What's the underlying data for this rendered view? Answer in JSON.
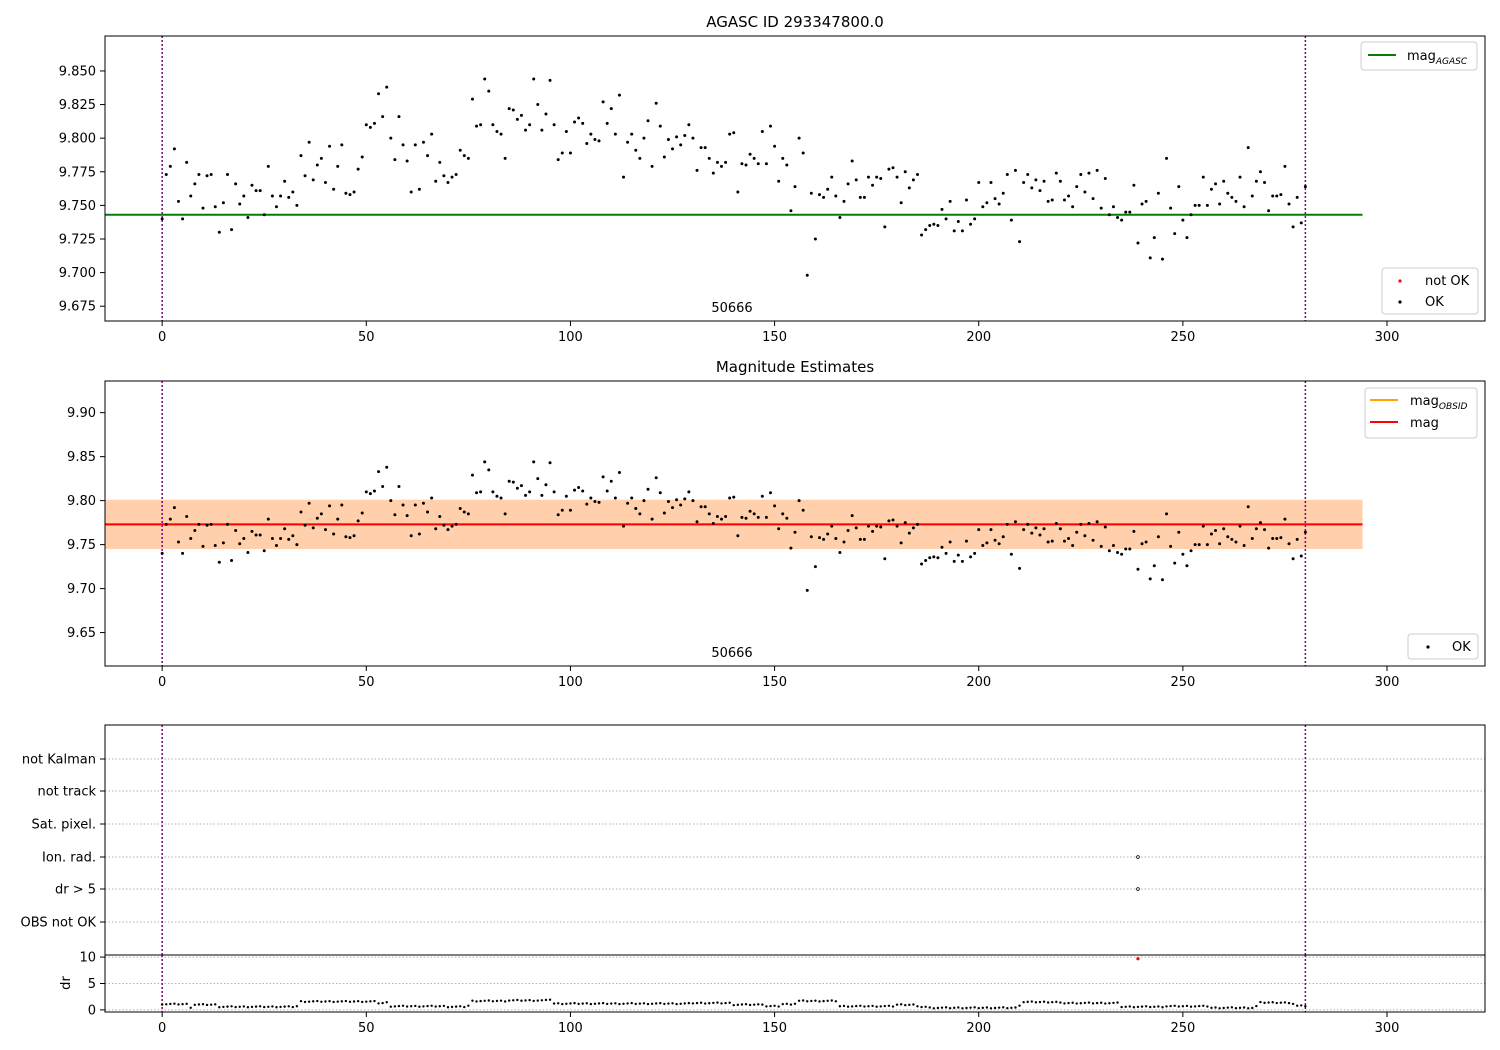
{
  "chart_data": [
    {
      "type": "scatter",
      "title": "AGASC ID 293347800.0",
      "xlabel": "",
      "ylabel": "",
      "xlim": [
        -14,
        324
      ],
      "ylim": [
        9.664,
        9.876
      ],
      "xticks": [
        0,
        50,
        100,
        150,
        200,
        250,
        300
      ],
      "yticks": [
        9.675,
        9.7,
        9.725,
        9.75,
        9.775,
        9.8,
        9.825,
        9.85
      ],
      "obsid_label": "50666",
      "vlines": [
        0,
        280
      ],
      "hlines": [
        {
          "name": "mag_AGASC",
          "y": 9.743,
          "x_range": [
            -14,
            294
          ],
          "color": "#008000"
        }
      ],
      "legends": [
        {
          "position": "upper-right",
          "entries": [
            {
              "label": "mag",
              "sub": "AGASC",
              "kind": "line",
              "color": "#008000"
            }
          ]
        },
        {
          "position": "lower-right",
          "entries": [
            {
              "label": "not OK",
              "kind": "dot",
              "color": "#ff0000"
            },
            {
              "label": "OK",
              "kind": "dot",
              "color": "#000000"
            }
          ]
        }
      ],
      "series": [
        {
          "role": "OK",
          "color": "#000000",
          "points": "shared_mags"
        }
      ],
      "grid": false
    },
    {
      "type": "scatter",
      "title": "Magnitude Estimates",
      "xlabel": "",
      "ylabel": "",
      "xlim": [
        -14,
        324
      ],
      "ylim": [
        9.612,
        9.936
      ],
      "xticks": [
        0,
        50,
        100,
        150,
        200,
        250,
        300
      ],
      "yticks": [
        9.65,
        9.7,
        9.75,
        9.8,
        9.85,
        9.9
      ],
      "obsid_label": "50666",
      "vlines": [
        0,
        280
      ],
      "bands": [
        {
          "y_range": [
            9.745,
            9.801
          ],
          "x_range": [
            -14,
            294
          ],
          "color": "#ffc0cb",
          "opacity": 0.5
        },
        {
          "y_range": [
            9.745,
            9.801
          ],
          "x_range": [
            -14,
            294
          ],
          "color": "#ffa500",
          "opacity": 0.25
        }
      ],
      "hlines": [
        {
          "name": "mag_OBSID",
          "y": 9.773,
          "x_range": [
            -14,
            294
          ],
          "color": "#ffa500"
        },
        {
          "name": "mag",
          "y": 9.773,
          "x_range": [
            -14,
            294
          ],
          "color": "#ff0000"
        }
      ],
      "legends": [
        {
          "position": "upper-right",
          "entries": [
            {
              "label": "mag",
              "sub": "OBSID",
              "kind": "line",
              "color": "#ffa500"
            },
            {
              "label": "mag",
              "kind": "line",
              "color": "#ff0000"
            }
          ]
        },
        {
          "position": "lower-right",
          "entries": [
            {
              "label": "OK",
              "kind": "dot",
              "color": "#000000"
            }
          ]
        }
      ],
      "series": [
        {
          "role": "OK",
          "color": "#000000",
          "points": "shared_mags"
        }
      ],
      "grid": false
    },
    {
      "type": "scatter",
      "title": "",
      "xlim": [
        -14,
        324
      ],
      "category_rows": [
        "not Kalman",
        "not track",
        "Sat. pixel.",
        "Ion. rad.",
        "dr > 5",
        "OBS not OK"
      ],
      "flag_points": [
        {
          "row": "Ion. rad.",
          "x": 239
        },
        {
          "row": "dr > 5",
          "x": 239
        }
      ],
      "vlines": [
        0,
        280
      ],
      "grid": "horizontal-dotted"
    },
    {
      "type": "scatter",
      "title": "",
      "xlabel": "",
      "ylabel": "dr",
      "xlim": [
        -14,
        324
      ],
      "ylim": [
        -0.4,
        10.4
      ],
      "xticks": [
        0,
        50,
        100,
        150,
        200,
        250,
        300
      ],
      "yticks": [
        0,
        5,
        10
      ],
      "vlines": [
        0,
        280
      ],
      "outlier": {
        "x": 239,
        "y": 9.7,
        "color": "#ff0000"
      },
      "dr_levels": [
        [
          0,
          1.0
        ],
        [
          7,
          0.4
        ],
        [
          8,
          0.9
        ],
        [
          14,
          0.5
        ],
        [
          33,
          0.6
        ],
        [
          34,
          1.5
        ],
        [
          48,
          1.5
        ],
        [
          53,
          1.2
        ],
        [
          55,
          1.3
        ],
        [
          56,
          0.6
        ],
        [
          70,
          0.5
        ],
        [
          75,
          0.7
        ],
        [
          76,
          1.6
        ],
        [
          85,
          1.7
        ],
        [
          95,
          1.9
        ],
        [
          96,
          1.1
        ],
        [
          130,
          1.2
        ],
        [
          140,
          0.9
        ],
        [
          147,
          1.0
        ],
        [
          148,
          0.6
        ],
        [
          152,
          1.0
        ],
        [
          155,
          1.1
        ],
        [
          156,
          1.6
        ],
        [
          165,
          1.6
        ],
        [
          166,
          0.6
        ],
        [
          180,
          0.9
        ],
        [
          185,
          0.5
        ],
        [
          188,
          0.3
        ],
        [
          210,
          0.8
        ],
        [
          211,
          1.4
        ],
        [
          220,
          1.2
        ],
        [
          235,
          0.5
        ],
        [
          246,
          0.6
        ],
        [
          256,
          0.6
        ],
        [
          257,
          0.3
        ],
        [
          268,
          0.6
        ],
        [
          269,
          1.3
        ],
        [
          276,
          1.1
        ],
        [
          278,
          0.7
        ],
        [
          281,
          0.7
        ]
      ],
      "grid": "horizontal-dotted"
    }
  ],
  "shared_mags": [
    [
      0,
      9.74
    ],
    [
      1,
      9.773
    ],
    [
      2,
      9.779
    ],
    [
      3,
      9.792
    ],
    [
      4,
      9.753
    ],
    [
      5,
      9.74
    ],
    [
      6,
      9.782
    ],
    [
      7,
      9.757
    ],
    [
      8,
      9.766
    ],
    [
      9,
      9.773
    ],
    [
      10,
      9.748
    ],
    [
      11,
      9.772
    ],
    [
      12,
      9.773
    ],
    [
      13,
      9.749
    ],
    [
      14,
      9.73
    ],
    [
      15,
      9.752
    ],
    [
      16,
      9.773
    ],
    [
      17,
      9.732
    ],
    [
      18,
      9.766
    ],
    [
      19,
      9.751
    ],
    [
      20,
      9.757
    ],
    [
      21,
      9.741
    ],
    [
      22,
      9.765
    ],
    [
      23,
      9.761
    ],
    [
      24,
      9.761
    ],
    [
      25,
      9.743
    ],
    [
      26,
      9.779
    ],
    [
      27,
      9.757
    ],
    [
      28,
      9.749
    ],
    [
      29,
      9.757
    ],
    [
      30,
      9.768
    ],
    [
      31,
      9.756
    ],
    [
      32,
      9.76
    ],
    [
      33,
      9.75
    ],
    [
      34,
      9.787
    ],
    [
      35,
      9.772
    ],
    [
      36,
      9.797
    ],
    [
      37,
      9.769
    ],
    [
      38,
      9.78
    ],
    [
      39,
      9.785
    ],
    [
      40,
      9.767
    ],
    [
      41,
      9.794
    ],
    [
      42,
      9.762
    ],
    [
      43,
      9.779
    ],
    [
      44,
      9.795
    ],
    [
      45,
      9.759
    ],
    [
      46,
      9.758
    ],
    [
      47,
      9.76
    ],
    [
      48,
      9.777
    ],
    [
      49,
      9.786
    ],
    [
      50,
      9.81
    ],
    [
      51,
      9.808
    ],
    [
      52,
      9.811
    ],
    [
      53,
      9.833
    ],
    [
      54,
      9.816
    ],
    [
      55,
      9.838
    ],
    [
      56,
      9.8
    ],
    [
      57,
      9.784
    ],
    [
      58,
      9.816
    ],
    [
      59,
      9.795
    ],
    [
      60,
      9.783
    ],
    [
      61,
      9.76
    ],
    [
      62,
      9.795
    ],
    [
      63,
      9.762
    ],
    [
      64,
      9.797
    ],
    [
      65,
      9.787
    ],
    [
      66,
      9.803
    ],
    [
      67,
      9.768
    ],
    [
      68,
      9.782
    ],
    [
      69,
      9.772
    ],
    [
      70,
      9.767
    ],
    [
      71,
      9.771
    ],
    [
      72,
      9.773
    ],
    [
      73,
      9.791
    ],
    [
      74,
      9.787
    ],
    [
      75,
      9.785
    ],
    [
      76,
      9.829
    ],
    [
      77,
      9.809
    ],
    [
      78,
      9.81
    ],
    [
      79,
      9.844
    ],
    [
      80,
      9.835
    ],
    [
      81,
      9.81
    ],
    [
      82,
      9.805
    ],
    [
      83,
      9.803
    ],
    [
      84,
      9.785
    ],
    [
      85,
      9.822
    ],
    [
      86,
      9.821
    ],
    [
      87,
      9.814
    ],
    [
      88,
      9.817
    ],
    [
      89,
      9.806
    ],
    [
      90,
      9.81
    ],
    [
      91,
      9.844
    ],
    [
      92,
      9.825
    ],
    [
      93,
      9.806
    ],
    [
      94,
      9.818
    ],
    [
      95,
      9.843
    ],
    [
      96,
      9.81
    ],
    [
      97,
      9.784
    ],
    [
      98,
      9.789
    ],
    [
      99,
      9.805
    ],
    [
      100,
      9.789
    ],
    [
      101,
      9.812
    ],
    [
      102,
      9.815
    ],
    [
      103,
      9.811
    ],
    [
      104,
      9.796
    ],
    [
      105,
      9.803
    ],
    [
      106,
      9.799
    ],
    [
      107,
      9.798
    ],
    [
      108,
      9.827
    ],
    [
      109,
      9.811
    ],
    [
      110,
      9.822
    ],
    [
      111,
      9.803
    ],
    [
      112,
      9.832
    ],
    [
      113,
      9.771
    ],
    [
      114,
      9.797
    ],
    [
      115,
      9.803
    ],
    [
      116,
      9.791
    ],
    [
      117,
      9.785
    ],
    [
      118,
      9.8
    ],
    [
      119,
      9.813
    ],
    [
      120,
      9.779
    ],
    [
      121,
      9.826
    ],
    [
      122,
      9.809
    ],
    [
      123,
      9.786
    ],
    [
      124,
      9.799
    ],
    [
      125,
      9.792
    ],
    [
      126,
      9.801
    ],
    [
      127,
      9.795
    ],
    [
      128,
      9.802
    ],
    [
      129,
      9.81
    ],
    [
      130,
      9.8
    ],
    [
      131,
      9.776
    ],
    [
      132,
      9.793
    ],
    [
      133,
      9.793
    ],
    [
      134,
      9.785
    ],
    [
      135,
      9.774
    ],
    [
      136,
      9.782
    ],
    [
      137,
      9.779
    ],
    [
      138,
      9.782
    ],
    [
      139,
      9.803
    ],
    [
      140,
      9.804
    ],
    [
      141,
      9.76
    ],
    [
      142,
      9.781
    ],
    [
      143,
      9.78
    ],
    [
      144,
      9.788
    ],
    [
      145,
      9.785
    ],
    [
      146,
      9.781
    ],
    [
      147,
      9.805
    ],
    [
      148,
      9.781
    ],
    [
      149,
      9.809
    ],
    [
      150,
      9.794
    ],
    [
      151,
      9.768
    ],
    [
      152,
      9.785
    ],
    [
      153,
      9.78
    ],
    [
      154,
      9.746
    ],
    [
      155,
      9.764
    ],
    [
      156,
      9.8
    ],
    [
      157,
      9.789
    ],
    [
      158,
      9.698
    ],
    [
      159,
      9.759
    ],
    [
      160,
      9.725
    ],
    [
      161,
      9.758
    ],
    [
      162,
      9.756
    ],
    [
      163,
      9.762
    ],
    [
      164,
      9.771
    ],
    [
      165,
      9.757
    ],
    [
      166,
      9.741
    ],
    [
      167,
      9.753
    ],
    [
      168,
      9.766
    ],
    [
      169,
      9.783
    ],
    [
      170,
      9.769
    ],
    [
      171,
      9.756
    ],
    [
      172,
      9.756
    ],
    [
      173,
      9.771
    ],
    [
      174,
      9.765
    ],
    [
      175,
      9.771
    ],
    [
      176,
      9.77
    ],
    [
      177,
      9.734
    ],
    [
      178,
      9.777
    ],
    [
      179,
      9.778
    ],
    [
      180,
      9.771
    ],
    [
      181,
      9.752
    ],
    [
      182,
      9.775
    ],
    [
      183,
      9.763
    ],
    [
      184,
      9.769
    ],
    [
      185,
      9.773
    ],
    [
      186,
      9.728
    ],
    [
      187,
      9.732
    ],
    [
      188,
      9.735
    ],
    [
      189,
      9.736
    ],
    [
      190,
      9.735
    ],
    [
      191,
      9.747
    ],
    [
      192,
      9.74
    ],
    [
      193,
      9.753
    ],
    [
      194,
      9.731
    ],
    [
      195,
      9.738
    ],
    [
      196,
      9.731
    ],
    [
      197,
      9.754
    ],
    [
      198,
      9.736
    ],
    [
      199,
      9.74
    ],
    [
      200,
      9.767
    ],
    [
      201,
      9.749
    ],
    [
      202,
      9.752
    ],
    [
      203,
      9.767
    ],
    [
      204,
      9.755
    ],
    [
      205,
      9.751
    ],
    [
      206,
      9.759
    ],
    [
      207,
      9.773
    ],
    [
      208,
      9.739
    ],
    [
      209,
      9.776
    ],
    [
      210,
      9.723
    ],
    [
      211,
      9.767
    ],
    [
      212,
      9.773
    ],
    [
      213,
      9.763
    ],
    [
      214,
      9.769
    ],
    [
      215,
      9.761
    ],
    [
      216,
      9.768
    ],
    [
      217,
      9.753
    ],
    [
      218,
      9.754
    ],
    [
      219,
      9.774
    ],
    [
      220,
      9.768
    ],
    [
      221,
      9.754
    ],
    [
      222,
      9.757
    ],
    [
      223,
      9.749
    ],
    [
      224,
      9.764
    ],
    [
      225,
      9.773
    ],
    [
      226,
      9.76
    ],
    [
      227,
      9.774
    ],
    [
      228,
      9.755
    ],
    [
      229,
      9.776
    ],
    [
      230,
      9.748
    ],
    [
      231,
      9.77
    ],
    [
      232,
      9.743
    ],
    [
      233,
      9.749
    ],
    [
      234,
      9.741
    ],
    [
      235,
      9.739
    ],
    [
      236,
      9.745
    ],
    [
      237,
      9.745
    ],
    [
      238,
      9.765
    ],
    [
      239,
      9.722
    ],
    [
      240,
      9.751
    ],
    [
      241,
      9.753
    ],
    [
      242,
      9.711
    ],
    [
      243,
      9.726
    ],
    [
      244,
      9.759
    ],
    [
      245,
      9.71
    ],
    [
      246,
      9.785
    ],
    [
      247,
      9.748
    ],
    [
      248,
      9.729
    ],
    [
      249,
      9.764
    ],
    [
      250,
      9.739
    ],
    [
      251,
      9.726
    ],
    [
      252,
      9.743
    ],
    [
      253,
      9.75
    ],
    [
      254,
      9.75
    ],
    [
      255,
      9.771
    ],
    [
      256,
      9.75
    ],
    [
      257,
      9.762
    ],
    [
      258,
      9.766
    ],
    [
      259,
      9.751
    ],
    [
      260,
      9.768
    ],
    [
      261,
      9.759
    ],
    [
      262,
      9.756
    ],
    [
      263,
      9.753
    ],
    [
      264,
      9.771
    ],
    [
      265,
      9.749
    ],
    [
      266,
      9.793
    ],
    [
      267,
      9.757
    ],
    [
      268,
      9.768
    ],
    [
      269,
      9.775
    ],
    [
      270,
      9.767
    ],
    [
      271,
      9.746
    ],
    [
      272,
      9.757
    ],
    [
      273,
      9.757
    ],
    [
      274,
      9.758
    ],
    [
      275,
      9.779
    ],
    [
      276,
      9.751
    ],
    [
      277,
      9.734
    ],
    [
      278,
      9.756
    ],
    [
      279,
      9.737
    ],
    [
      280,
      9.764
    ]
  ]
}
